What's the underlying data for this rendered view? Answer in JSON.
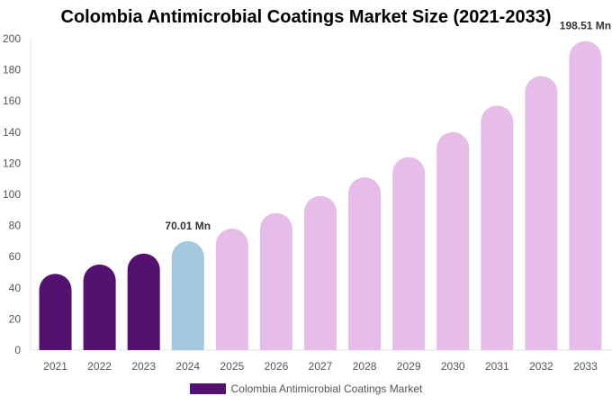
{
  "chart_data": {
    "type": "bar",
    "title": "Colombia Antimicrobial Coatings Market Size (2021-2033)",
    "categories": [
      "2021",
      "2022",
      "2023",
      "2024",
      "2025",
      "2026",
      "2027",
      "2028",
      "2029",
      "2030",
      "2031",
      "2032",
      "2033"
    ],
    "series": [
      {
        "name": "Colombia Antimicrobial Coatings Market",
        "values": [
          49,
          55,
          62,
          70.01,
          78,
          88,
          99,
          111,
          124,
          140,
          157,
          176,
          198.51
        ]
      }
    ],
    "data_labels": {
      "2024": "70.01 Mn",
      "2033": "198.51 Mn"
    },
    "ylim": [
      0,
      200
    ],
    "yticks": [
      0,
      20,
      40,
      60,
      80,
      100,
      120,
      140,
      160,
      180,
      200
    ],
    "grid": false,
    "legend": "bottom",
    "colors": {
      "historical": "#541170",
      "current": "#a3c9de",
      "forecast": "#e6bce8"
    }
  }
}
